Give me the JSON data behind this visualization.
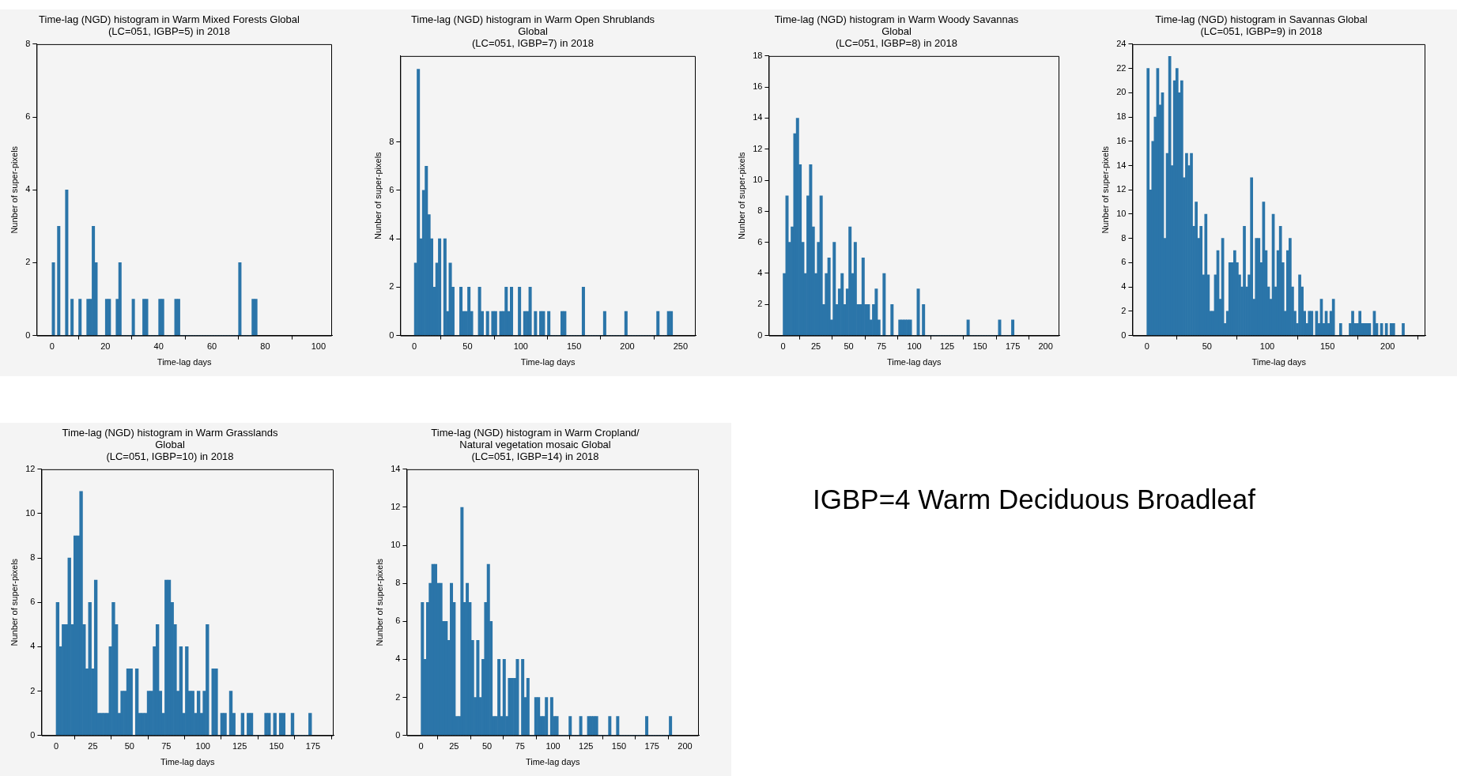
{
  "chart_data": [
    {
      "type": "histogram",
      "title": "Time-lag (NGD) histogram in Warm Mixed Forests Global\n(LC=051, IGBP=5) in 2018",
      "xlabel": "Time-lag days",
      "ylabel": "Nunber of super-pixels",
      "color": "#2b75a9",
      "bins": [
        0,
        1,
        2,
        3,
        4,
        5,
        6,
        7,
        8,
        9,
        10,
        11,
        12,
        13,
        14,
        15,
        16,
        17,
        18,
        19,
        20,
        21,
        22,
        23,
        24,
        25,
        26,
        27,
        28,
        29,
        30,
        31,
        32,
        33,
        34,
        35,
        36,
        37,
        38,
        39,
        40,
        41,
        42,
        43,
        44,
        45,
        46,
        47,
        48,
        49,
        50,
        51,
        52,
        53,
        54,
        55,
        56,
        57,
        58,
        59,
        60,
        61,
        62,
        63,
        64,
        65,
        66,
        67,
        68,
        69,
        70,
        71,
        72,
        73,
        74,
        75,
        76,
        77
      ],
      "values": [
        2,
        0,
        3,
        0,
        0,
        4,
        0,
        1,
        0,
        0,
        1,
        0,
        0,
        1,
        1,
        3,
        2,
        0,
        0,
        0,
        1,
        1,
        0,
        0,
        1,
        2,
        0,
        0,
        0,
        0,
        1,
        0,
        0,
        0,
        1,
        1,
        0,
        0,
        0,
        0,
        1,
        1,
        0,
        0,
        0,
        0,
        1,
        1,
        0,
        0,
        0,
        0,
        0,
        0,
        0,
        0,
        0,
        0,
        0,
        0,
        0,
        0,
        0,
        0,
        0,
        0,
        0,
        0,
        0,
        0,
        2,
        0,
        0,
        0,
        0,
        1,
        1
      ],
      "xlim": [
        -5.8,
        105.1
      ],
      "xticks": [
        0,
        20,
        40,
        60,
        80,
        100
      ],
      "ylim": [
        0,
        8
      ],
      "yticks": [
        0,
        2,
        4,
        6,
        8
      ]
    },
    {
      "type": "histogram",
      "title": "Time-lag (NGD) histogram in Warm Open Shrublands\nGlobal\n(LC=051, IGBP=7) in 2018",
      "xlabel": "Time-lag days",
      "ylabel": "Nunber of super-pixels",
      "color": "#2b75a9",
      "bins": [
        0,
        2.5,
        5,
        7.5,
        10,
        12.5,
        15,
        17.5,
        20,
        22.5,
        25,
        27.5,
        30,
        32.5,
        35,
        37.5,
        40,
        42.5,
        45,
        47.5,
        50,
        52.5,
        55,
        57.5,
        60,
        62.5,
        65,
        67.5,
        70,
        72.5,
        75,
        77.5,
        80,
        82.5,
        85,
        87.5,
        90,
        92.5,
        95,
        97.5,
        100,
        102.5,
        105,
        107.5,
        110,
        112.5,
        115,
        117.5,
        120,
        122.5,
        125,
        127.5,
        130,
        132.5,
        135,
        137.5,
        140,
        142.5,
        145,
        147.5,
        150,
        152.5,
        155,
        157.5,
        160,
        162.5,
        165,
        167.5,
        170,
        172.5,
        175,
        177.5,
        180,
        182.5,
        185,
        187.5,
        190,
        192.5,
        195,
        197.5,
        200,
        202.5,
        205,
        207.5,
        210,
        212.5,
        215,
        217.5,
        220,
        222.5,
        225,
        227.5,
        230,
        232.5,
        235,
        237.5,
        240,
        242.5
      ],
      "values": [
        3,
        11,
        4,
        6,
        7,
        5,
        4,
        2,
        3,
        4,
        0,
        4,
        1,
        3,
        2,
        0,
        0,
        2,
        1,
        1,
        2,
        1,
        0,
        0,
        2,
        1,
        0,
        1,
        0,
        1,
        1,
        0,
        1,
        1,
        2,
        1,
        2,
        0,
        0,
        2,
        0,
        1,
        1,
        2,
        0,
        1,
        0,
        1,
        1,
        0,
        1,
        0,
        0,
        0,
        0,
        1,
        1,
        0,
        0,
        0,
        0,
        0,
        0,
        2,
        0,
        0,
        0,
        0,
        0,
        0,
        0,
        1,
        0,
        0,
        0,
        0,
        0,
        0,
        0,
        1,
        0,
        0,
        0,
        0,
        0,
        0,
        0,
        0,
        0,
        0,
        0,
        1,
        0,
        0,
        0,
        1,
        1
      ],
      "xlim": [
        -13.2,
        264.2
      ],
      "xticks": [
        0,
        50,
        100,
        150,
        200,
        250
      ],
      "ylim": [
        0,
        11.55
      ],
      "yticks": [
        0,
        2,
        4,
        6,
        8
      ]
    },
    {
      "type": "histogram",
      "title": "Time-lag (NGD) histogram in Warm Woody Savannas\nGlobal\n(LC=051, IGBP=8) in 2018",
      "xlabel": "Time-lag days",
      "ylabel": "Nunber of super-pixels",
      "color": "#2b75a9",
      "bins": [
        0,
        2,
        4,
        6,
        8,
        10,
        12,
        14,
        16,
        18,
        20,
        22,
        24,
        26,
        28,
        30,
        32,
        34,
        36,
        38,
        40,
        42,
        44,
        46,
        48,
        50,
        52,
        54,
        56,
        58,
        60,
        62,
        64,
        66,
        68,
        70,
        72,
        74,
        76,
        78,
        80,
        82,
        84,
        86,
        88,
        90,
        92,
        94,
        96,
        98,
        100,
        102,
        104,
        106,
        108,
        110,
        112,
        114,
        116,
        118,
        120,
        122,
        124,
        126,
        128,
        130,
        132,
        134,
        136,
        138,
        140,
        142,
        144,
        146,
        148,
        150,
        152,
        154,
        156,
        158,
        160,
        162,
        164,
        166,
        168,
        170,
        172,
        174,
        176
      ],
      "values": [
        4,
        9,
        6,
        7,
        13,
        14,
        11,
        6,
        4,
        9,
        11,
        7,
        4,
        6,
        9,
        2,
        4,
        5,
        1,
        6,
        2,
        3,
        4,
        2,
        3,
        7,
        4,
        6,
        2,
        2,
        5,
        2,
        2,
        1,
        2,
        3,
        1,
        0,
        4,
        0,
        0,
        2,
        0,
        0,
        1,
        1,
        1,
        1,
        1,
        0,
        0,
        3,
        0,
        2,
        0,
        0,
        0,
        0,
        0,
        0,
        0,
        0,
        0,
        0,
        0,
        0,
        0,
        0,
        0,
        0,
        1,
        0,
        0,
        0,
        0,
        0,
        0,
        0,
        0,
        0,
        0,
        0,
        1,
        0,
        0,
        0,
        0,
        1
      ],
      "xlim": [
        -10.9,
        210.5
      ],
      "xticks": [
        0,
        25,
        50,
        75,
        100,
        125,
        150,
        175,
        200
      ],
      "ylim": [
        0,
        18
      ],
      "yticks": [
        0,
        2,
        4,
        6,
        8,
        10,
        12,
        14,
        16,
        18
      ]
    },
    {
      "type": "histogram",
      "title": "Time-lag (NGD) histogram in Savannas Global\n(LC=051, IGBP=9) in 2018",
      "xlabel": "Time-lag days",
      "ylabel": "Nunber of super-pixels",
      "color": "#2b75a9",
      "bins": [
        0,
        2,
        4,
        6,
        8,
        10,
        12,
        14,
        16,
        18,
        20,
        22,
        24,
        26,
        28,
        30,
        32,
        34,
        36,
        38,
        40,
        42,
        44,
        46,
        48,
        50,
        52,
        54,
        56,
        58,
        60,
        62,
        64,
        66,
        68,
        70,
        72,
        74,
        76,
        78,
        80,
        82,
        84,
        86,
        88,
        90,
        92,
        94,
        96,
        98,
        100,
        102,
        104,
        106,
        108,
        110,
        112,
        114,
        116,
        118,
        120,
        122,
        124,
        126,
        128,
        130,
        132,
        134,
        136,
        138,
        140,
        142,
        144,
        146,
        148,
        150,
        152,
        154,
        156,
        158,
        160,
        162,
        164,
        166,
        168,
        170,
        172,
        174,
        176,
        178,
        180,
        182,
        184,
        186,
        188,
        190,
        192,
        194,
        196,
        198,
        200,
        202,
        204,
        206,
        208,
        210,
        212,
        214
      ],
      "values": [
        22,
        12,
        16,
        18,
        22,
        19,
        20,
        8,
        15,
        23,
        14,
        21,
        22,
        20,
        21,
        13,
        15,
        14,
        15,
        9,
        11,
        8,
        9,
        5,
        10,
        5,
        2,
        2,
        5,
        7,
        3,
        8,
        1,
        2,
        6,
        6,
        7,
        6,
        5,
        4,
        9,
        4,
        5,
        13,
        3,
        8,
        8,
        6,
        11,
        7,
        4,
        3,
        10,
        4,
        7,
        9,
        6,
        2,
        7,
        8,
        4,
        2,
        1,
        5,
        4,
        2,
        1,
        2,
        2,
        0,
        2,
        1,
        3,
        1,
        2,
        1,
        2,
        3,
        0,
        0,
        1,
        0,
        0,
        0,
        1,
        2,
        1,
        1,
        2,
        1,
        1,
        1,
        1,
        0,
        2,
        1,
        0,
        1,
        0,
        1,
        0,
        1,
        1,
        0,
        0,
        0,
        1
      ],
      "xlim": [
        -12,
        231.4
      ],
      "xticks": [
        0,
        50,
        100,
        150,
        200
      ],
      "ylim": [
        0,
        24
      ],
      "yticks": [
        0,
        2,
        4,
        6,
        8,
        10,
        12,
        14,
        16,
        18,
        20,
        22,
        24
      ]
    },
    {
      "type": "histogram",
      "title": "Time-lag (NGD) histogram in Warm Grasslands\nGlobal\n(LC=051, IGBP=10) in 2018",
      "xlabel": "Time-lag days",
      "ylabel": "Nunber of super-pixels",
      "color": "#2b75a9",
      "bins": [
        0,
        2,
        4,
        6,
        8,
        10,
        12,
        14,
        16,
        18,
        20,
        22,
        24,
        26,
        28,
        30,
        32,
        34,
        36,
        38,
        40,
        42,
        44,
        46,
        48,
        50,
        52,
        54,
        56,
        58,
        60,
        62,
        64,
        66,
        68,
        70,
        72,
        74,
        76,
        78,
        80,
        82,
        84,
        86,
        88,
        90,
        92,
        94,
        96,
        98,
        100,
        102,
        104,
        106,
        108,
        110,
        112,
        114,
        116,
        118,
        120,
        122,
        124,
        126,
        128,
        130,
        132,
        134,
        136,
        138,
        140,
        142,
        144,
        146,
        148,
        150,
        152,
        154,
        156,
        158,
        160,
        162,
        164,
        166,
        168,
        170,
        172,
        174
      ],
      "values": [
        6,
        4,
        5,
        5,
        8,
        5,
        9,
        9,
        11,
        5,
        3,
        6,
        3,
        7,
        1,
        1,
        1,
        1,
        4,
        6,
        5,
        1,
        2,
        2,
        3,
        3,
        0,
        3,
        1,
        1,
        1,
        2,
        2,
        4,
        5,
        2,
        1,
        7,
        7,
        6,
        5,
        2,
        4,
        1,
        4,
        2,
        2,
        1,
        2,
        1,
        2,
        5,
        0,
        3,
        3,
        0,
        1,
        1,
        0,
        2,
        1,
        0,
        0,
        1,
        0,
        1,
        1,
        0,
        0,
        0,
        0,
        1,
        1,
        0,
        1,
        0,
        1,
        1,
        0,
        0,
        1,
        0,
        0,
        0,
        0,
        0,
        1
      ],
      "xlim": [
        -10,
        189
      ],
      "xticks": [
        0,
        25,
        50,
        75,
        100,
        125,
        150,
        175
      ],
      "ylim": [
        0,
        12
      ],
      "yticks": [
        0,
        2,
        4,
        6,
        8,
        10,
        12
      ]
    },
    {
      "type": "histogram",
      "title": "Time-lag (NGD) histogram in Warm Cropland/\nNatural vegetation mosaic Global\n(LC=051, IGBP=14) in 2018",
      "xlabel": "Time-lag days",
      "ylabel": "Nunber of super-pixels",
      "color": "#2b75a9",
      "bins": [
        0,
        2,
        4,
        6,
        8,
        10,
        12,
        14,
        16,
        18,
        20,
        22,
        24,
        26,
        28,
        30,
        32,
        34,
        36,
        38,
        40,
        42,
        44,
        46,
        48,
        50,
        52,
        54,
        56,
        58,
        60,
        62,
        64,
        66,
        68,
        70,
        72,
        74,
        76,
        78,
        80,
        82,
        84,
        86,
        88,
        90,
        92,
        94,
        96,
        98,
        100,
        102,
        104,
        106,
        108,
        110,
        112,
        114,
        116,
        118,
        120,
        122,
        124,
        126,
        128,
        130,
        132,
        134,
        136,
        138,
        140,
        142,
        144,
        146,
        148,
        150,
        152,
        154,
        156,
        158,
        160,
        162,
        164,
        166,
        168,
        170,
        172,
        174,
        176,
        178,
        180,
        182,
        184,
        186,
        188,
        190
      ],
      "values": [
        7,
        4,
        7,
        8,
        9,
        9,
        8,
        8,
        6,
        6,
        5,
        8,
        7,
        1,
        1,
        12,
        7,
        8,
        7,
        5,
        2,
        5,
        2,
        4,
        7,
        9,
        6,
        1,
        1,
        4,
        1,
        4,
        1,
        3,
        3,
        3,
        4,
        0,
        4,
        2,
        3,
        0,
        0,
        2,
        2,
        1,
        1,
        2,
        0,
        2,
        1,
        1,
        0,
        0,
        0,
        0,
        1,
        0,
        0,
        0,
        1,
        0,
        0,
        1,
        1,
        1,
        1,
        0,
        0,
        0,
        0,
        1,
        0,
        0,
        1,
        0,
        0,
        0,
        0,
        0,
        0,
        0,
        0,
        0,
        0,
        1,
        0,
        0,
        0,
        0,
        0,
        0,
        0,
        0,
        1
      ],
      "xlim": [
        -10.9,
        210.5
      ],
      "xticks": [
        0,
        25,
        50,
        75,
        100,
        125,
        150,
        175,
        200
      ],
      "ylim": [
        0,
        14
      ],
      "yticks": [
        0,
        2,
        4,
        6,
        8,
        10,
        12,
        14
      ]
    },
    {
      "type": "other",
      "title": "IGBP=4 Warm Deciduous Broadleaf"
    }
  ]
}
